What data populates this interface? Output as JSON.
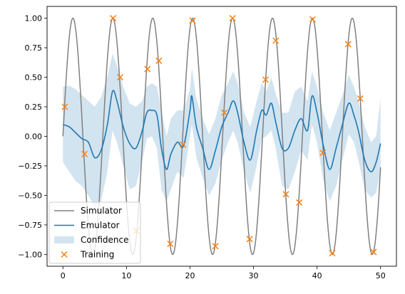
{
  "chart_data": {
    "type": "line",
    "xlim": [
      -2.5,
      52.5
    ],
    "ylim": [
      -1.1,
      1.1
    ],
    "xticks": [
      0,
      10,
      20,
      30,
      40,
      50
    ],
    "xtick_labels": [
      "0",
      "10",
      "20",
      "30",
      "40",
      "50"
    ],
    "yticks": [
      -1.0,
      -0.75,
      -0.5,
      -0.25,
      0.0,
      0.25,
      0.5,
      0.75,
      1.0
    ],
    "ytick_labels": [
      "−1.00",
      "−0.75",
      "−0.50",
      "−0.25",
      "0.00",
      "0.25",
      "0.50",
      "0.75",
      "1.00"
    ],
    "grid": false,
    "legend_position": "lower-left",
    "series": [
      {
        "name": "Simulator",
        "kind": "line",
        "color": "#808080",
        "function": "y = sin(x), x from 0 to 50"
      },
      {
        "name": "Emulator",
        "kind": "line",
        "color": "#1f77b4",
        "x": [
          0,
          1,
          2,
          3,
          4,
          5,
          6,
          7,
          7.8,
          8.5,
          9.5,
          10.5,
          11.5,
          12.5,
          13.2,
          14,
          14.8,
          15.5,
          16.3,
          17,
          18,
          19,
          20,
          20.3,
          21,
          22,
          23,
          24,
          25,
          26,
          26.8,
          27.5,
          28.5,
          29.5,
          30.5,
          31.3,
          32,
          32.8,
          33.5,
          34.5,
          35.5,
          36.5,
          37.5,
          38.5,
          39.2,
          40,
          41,
          42,
          43,
          44,
          45,
          45.8,
          46.5,
          47.5,
          48.5,
          49.3,
          50
        ],
        "y": [
          0.1,
          0.08,
          0.03,
          -0.02,
          -0.05,
          -0.18,
          -0.12,
          0.1,
          0.38,
          0.3,
          0.08,
          -0.06,
          -0.1,
          0.05,
          0.2,
          0.22,
          0.18,
          -0.1,
          -0.28,
          -0.15,
          -0.05,
          -0.08,
          0.22,
          0.34,
          0.08,
          -0.1,
          -0.28,
          -0.12,
          0.08,
          0.2,
          0.3,
          0.2,
          -0.05,
          -0.2,
          0.05,
          0.22,
          0.18,
          0.28,
          0.12,
          -0.1,
          -0.1,
          0.05,
          0.15,
          0.05,
          0.34,
          0.2,
          -0.08,
          -0.28,
          -0.1,
          0.1,
          0.28,
          0.18,
          0.05,
          -0.2,
          -0.3,
          -0.22,
          -0.06
        ]
      },
      {
        "name": "Confidence",
        "kind": "band",
        "color": "#1f77b4",
        "opacity": 0.2,
        "x": [
          0,
          1,
          2,
          3,
          4,
          5,
          6,
          7,
          7.8,
          8.5,
          9.5,
          10.5,
          11.5,
          12.5,
          13.2,
          14,
          14.8,
          15.5,
          16.3,
          17,
          18,
          19,
          20,
          20.3,
          21,
          22,
          23,
          24,
          25,
          26,
          26.8,
          27.5,
          28.5,
          29.5,
          30.5,
          31.3,
          32,
          32.8,
          33.5,
          34.5,
          35.5,
          36.5,
          37.5,
          38.5,
          39.2,
          40,
          41,
          42,
          43,
          44,
          45,
          45.8,
          46.5,
          47.5,
          48.5,
          49.3,
          50
        ],
        "lower": [
          -0.22,
          -0.3,
          -0.38,
          -0.42,
          -0.5,
          -0.6,
          -0.55,
          -0.3,
          0.05,
          -0.05,
          -0.25,
          -0.45,
          -0.42,
          -0.2,
          -0.02,
          0.0,
          -0.1,
          -0.45,
          -0.55,
          -0.45,
          -0.3,
          -0.35,
          0.0,
          0.1,
          -0.18,
          -0.35,
          -0.5,
          -0.4,
          -0.2,
          -0.05,
          0.05,
          -0.05,
          -0.3,
          -0.48,
          -0.25,
          -0.02,
          0.0,
          0.05,
          -0.1,
          -0.42,
          -0.45,
          -0.3,
          -0.12,
          -0.2,
          0.1,
          -0.05,
          -0.38,
          -0.55,
          -0.42,
          -0.2,
          0.02,
          -0.05,
          -0.2,
          -0.45,
          -0.52,
          -0.48,
          -0.3
        ],
        "upper": [
          0.42,
          0.43,
          0.4,
          0.35,
          0.3,
          0.25,
          0.33,
          0.5,
          0.7,
          0.6,
          0.42,
          0.28,
          0.25,
          0.3,
          0.42,
          0.45,
          0.42,
          0.22,
          0.0,
          0.15,
          0.22,
          0.22,
          0.4,
          0.58,
          0.32,
          0.15,
          0.02,
          0.15,
          0.35,
          0.45,
          0.55,
          0.45,
          0.2,
          0.08,
          0.3,
          0.45,
          0.38,
          0.5,
          0.36,
          0.2,
          0.2,
          0.38,
          0.42,
          0.3,
          0.55,
          0.42,
          0.2,
          0.05,
          0.2,
          0.35,
          0.52,
          0.42,
          0.3,
          0.08,
          -0.05,
          0.0,
          0.32
        ]
      },
      {
        "name": "Training",
        "kind": "scatter",
        "marker": "x",
        "color": "#ff7f0e",
        "x": [
          0.3,
          3.4,
          7.9,
          9.0,
          11.6,
          13.3,
          15.1,
          16.9,
          18.9,
          20.4,
          24.0,
          25.4,
          26.7,
          29.4,
          31.9,
          33.5,
          35.1,
          37.2,
          39.3,
          40.9,
          42.4,
          44.9,
          46.8,
          48.9
        ],
        "y": [
          0.25,
          -0.15,
          1.0,
          0.5,
          -0.8,
          0.57,
          0.64,
          -0.91,
          -0.07,
          0.98,
          -0.93,
          0.2,
          1.0,
          -0.87,
          0.48,
          0.81,
          -0.49,
          -0.56,
          0.99,
          -0.14,
          -0.99,
          0.78,
          0.32,
          -0.98
        ]
      }
    ],
    "legend": [
      {
        "label": "Simulator",
        "kind": "line",
        "color": "#808080"
      },
      {
        "label": "Emulator",
        "kind": "line",
        "color": "#1f77b4"
      },
      {
        "label": "Confidence",
        "kind": "patch",
        "color": "#1f77b4"
      },
      {
        "label": "Training",
        "kind": "marker",
        "color": "#ff7f0e"
      }
    ]
  }
}
